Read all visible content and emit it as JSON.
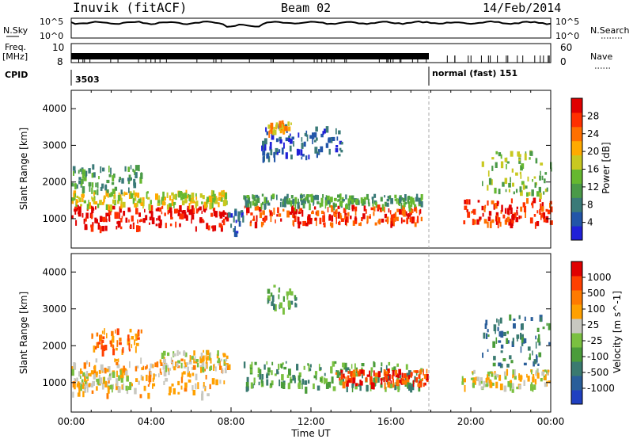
{
  "header": {
    "station": "Inuvik (fitACF)",
    "beam": "Beam 02",
    "date": "14/Feb/2014"
  },
  "strip_labels": {
    "nsky": "N.Sky",
    "nsearch": "N.Search",
    "freq": "Freq.",
    "freq_unit": "[MHz]",
    "nave": "Nave",
    "cpid": "CPID",
    "cpid_value_1": "3503",
    "cpid_value_2": "normal (fast) 151"
  },
  "strip_ticks": {
    "nsky_left": [
      "10^5",
      "10^0"
    ],
    "nsky_right": [
      "10^5",
      "10^0"
    ],
    "freq_left": [
      "10",
      "8"
    ],
    "nave_right": [
      "60",
      "0"
    ]
  },
  "colors": {
    "power": [
      "#2020d8",
      "#2255a8",
      "#3a7a78",
      "#4a9a48",
      "#66b830",
      "#c8c820",
      "#ffaa00",
      "#ff7000",
      "#ff3000",
      "#e00000"
    ],
    "velocity": [
      "#2040c0",
      "#2a5e9a",
      "#3a7a70",
      "#4a9c3a",
      "#7ac040",
      "#c8c8c0",
      "#ffa000",
      "#ff7a00",
      "#ff4000",
      "#e00000"
    ]
  },
  "chart_data": [
    {
      "type": "heatmap",
      "name": "Power",
      "ylabel": "Slant Range [km]",
      "ylim": [
        200,
        4500
      ],
      "yticks": [
        "1000",
        "2000",
        "3000",
        "4000"
      ],
      "xlim": [
        "00:00",
        "24:00"
      ],
      "colorbar_label": "Power [dB]",
      "colorbar_ticks": [
        "4",
        "8",
        "12",
        "16",
        "20",
        "24",
        "28"
      ],
      "events": [
        {
          "t0": 0.0,
          "t1": 7.8,
          "r0": 700,
          "r1": 1300,
          "level": 9
        },
        {
          "t0": 0.0,
          "t1": 7.8,
          "r0": 1300,
          "r1": 1700,
          "level": 5
        },
        {
          "t0": 0.0,
          "t1": 3.5,
          "r0": 1700,
          "r1": 2400,
          "level": 3
        },
        {
          "t0": 7.8,
          "t1": 8.6,
          "r0": 500,
          "r1": 1200,
          "level": 1
        },
        {
          "t0": 8.6,
          "t1": 17.5,
          "r0": 800,
          "r1": 1300,
          "level": 8
        },
        {
          "t0": 8.6,
          "t1": 17.5,
          "r0": 1300,
          "r1": 1600,
          "level": 3
        },
        {
          "t0": 9.5,
          "t1": 13.5,
          "r0": 2600,
          "r1": 3500,
          "level": 1
        },
        {
          "t0": 9.8,
          "t1": 11.2,
          "r0": 3300,
          "r1": 3600,
          "level": 6
        },
        {
          "t0": 19.5,
          "t1": 24.0,
          "r0": 800,
          "r1": 1500,
          "level": 8
        },
        {
          "t0": 20.5,
          "t1": 24.0,
          "r0": 1600,
          "r1": 2800,
          "level": 4
        }
      ]
    },
    {
      "type": "heatmap",
      "name": "Velocity",
      "ylabel": "Slant Range [km]",
      "ylim": [
        200,
        4500
      ],
      "yticks": [
        "1000",
        "2000",
        "3000",
        "4000"
      ],
      "xlim": [
        "00:00",
        "24:00"
      ],
      "xlabel": "Time UT",
      "xticks": [
        "00:00",
        "04:00",
        "08:00",
        "12:00",
        "16:00",
        "20:00",
        "00:00"
      ],
      "colorbar_label": "Velocity [m s^-1]",
      "colorbar_ticks": [
        "1000",
        "500",
        "100",
        "25",
        "-25",
        "-100",
        "-500",
        "-1000"
      ],
      "events": [
        {
          "t0": 0.0,
          "t1": 7.8,
          "r0": 600,
          "r1": 1600,
          "level": 6
        },
        {
          "t0": 0.0,
          "t1": 3.0,
          "r0": 800,
          "r1": 1300,
          "level": 5
        },
        {
          "t0": 4.5,
          "t1": 8.0,
          "r0": 1300,
          "r1": 1800,
          "level": 5
        },
        {
          "t0": 8.6,
          "t1": 17.5,
          "r0": 800,
          "r1": 1500,
          "level": 3
        },
        {
          "t0": 13.0,
          "t1": 17.8,
          "r0": 900,
          "r1": 1300,
          "level": 8
        },
        {
          "t0": 1.0,
          "t1": 3.5,
          "r0": 1800,
          "r1": 2400,
          "level": 7
        },
        {
          "t0": 9.8,
          "t1": 11.2,
          "r0": 2900,
          "r1": 3600,
          "level": 3
        },
        {
          "t0": 19.5,
          "t1": 24.0,
          "r0": 800,
          "r1": 1300,
          "level": 5
        },
        {
          "t0": 20.5,
          "t1": 24.0,
          "r0": 1400,
          "r1": 2800,
          "level": 2
        }
      ]
    }
  ]
}
